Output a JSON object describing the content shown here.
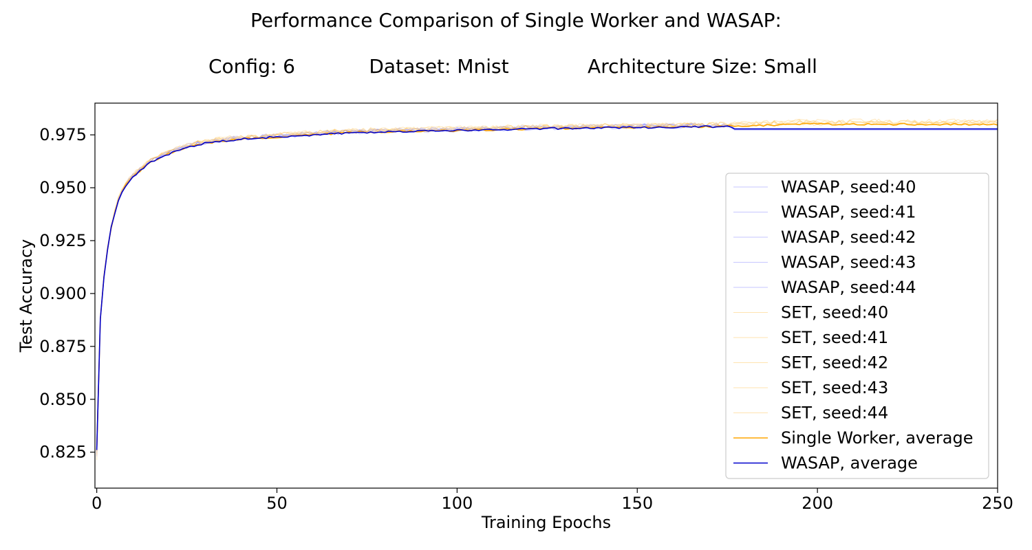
{
  "chart_data": {
    "type": "line",
    "title": "Performance Comparison of Single Worker and WASAP:",
    "subtitle_parts": [
      "Config: 6",
      "Dataset: Mnist",
      "Architecture Size: Small"
    ],
    "xlabel": "Training Epochs",
    "ylabel": "Test Accuracy",
    "xlim": [
      -0.5,
      250
    ],
    "ylim": [
      0.808,
      0.99
    ],
    "x_ticks": [
      0,
      50,
      100,
      150,
      200,
      250
    ],
    "x_tick_labels": [
      "0",
      "50",
      "100",
      "150",
      "200",
      "250"
    ],
    "y_ticks": [
      0.825,
      0.85,
      0.875,
      0.9,
      0.925,
      0.95,
      0.975
    ],
    "y_tick_labels": [
      "0.825",
      "0.850",
      "0.875",
      "0.900",
      "0.925",
      "0.950",
      "0.975"
    ],
    "grid": false,
    "legend_position": "center-right",
    "curve_model": {
      "start": 0.826,
      "anchors": [
        [
          0,
          0.826
        ],
        [
          1,
          0.888
        ],
        [
          2,
          0.908
        ],
        [
          3,
          0.921
        ],
        [
          4,
          0.931
        ],
        [
          5,
          0.938
        ],
        [
          6,
          0.944
        ],
        [
          7,
          0.948
        ],
        [
          8,
          0.951
        ],
        [
          10,
          0.955
        ],
        [
          12,
          0.958
        ],
        [
          15,
          0.962
        ],
        [
          20,
          0.966
        ],
        [
          25,
          0.969
        ],
        [
          30,
          0.971
        ],
        [
          40,
          0.973
        ],
        [
          50,
          0.974
        ],
        [
          60,
          0.975
        ],
        [
          70,
          0.976
        ],
        [
          80,
          0.9765
        ],
        [
          100,
          0.977
        ],
        [
          125,
          0.978
        ],
        [
          150,
          0.9785
        ],
        [
          175,
          0.979
        ]
      ]
    },
    "series": [
      {
        "name": "WASAP, seed:40",
        "group": "wasap",
        "color": "#8080ff",
        "end_epoch": 176,
        "plateau": 0.9775
      },
      {
        "name": "WASAP, seed:41",
        "group": "wasap",
        "color": "#8080ff",
        "end_epoch": 176,
        "plateau": 0.9778
      },
      {
        "name": "WASAP, seed:42",
        "group": "wasap",
        "color": "#8080ff",
        "end_epoch": 176,
        "plateau": 0.9772
      },
      {
        "name": "WASAP, seed:43",
        "group": "wasap",
        "color": "#8080ff",
        "end_epoch": 176,
        "plateau": 0.978
      },
      {
        "name": "WASAP, seed:44",
        "group": "wasap",
        "color": "#8080ff",
        "end_epoch": 176,
        "plateau": 0.9776
      },
      {
        "name": "SET, seed:40",
        "group": "set",
        "color": "#ffc14d",
        "end_epoch": 250,
        "plateau": 0.98
      },
      {
        "name": "SET, seed:41",
        "group": "set",
        "color": "#ffc14d",
        "end_epoch": 250,
        "plateau": 0.9795
      },
      {
        "name": "SET, seed:42",
        "group": "set",
        "color": "#ffc14d",
        "end_epoch": 250,
        "plateau": 0.9805
      },
      {
        "name": "SET, seed:43",
        "group": "set",
        "color": "#ffc14d",
        "end_epoch": 250,
        "plateau": 0.9798
      },
      {
        "name": "SET, seed:44",
        "group": "set",
        "color": "#ffc14d",
        "end_epoch": 250,
        "plateau": 0.9802
      },
      {
        "name": "Single Worker, average",
        "group": "set-avg",
        "color": "#ffa500",
        "end_epoch": 250,
        "plateau": 0.98
      },
      {
        "name": "WASAP, average",
        "group": "wasap-avg",
        "color": "#0000cc",
        "end_epoch": 176,
        "plateau": 0.9778
      }
    ]
  }
}
